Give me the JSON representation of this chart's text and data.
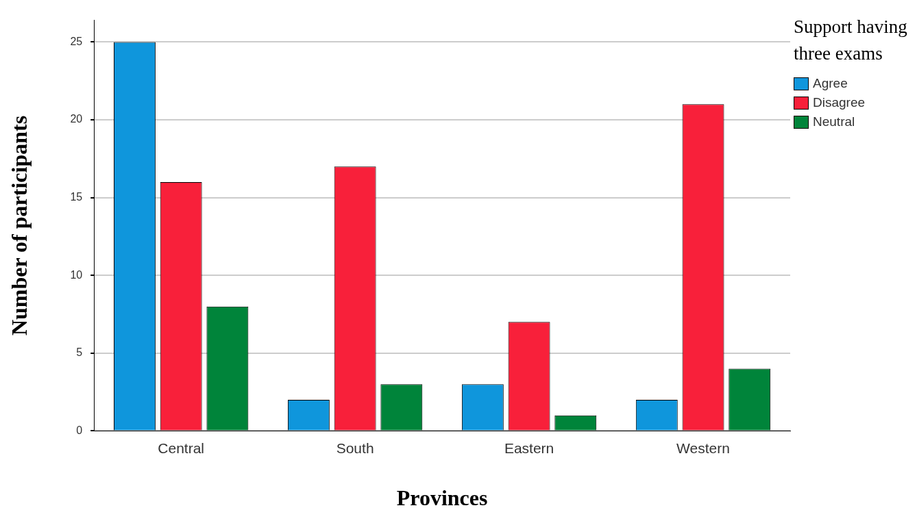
{
  "chart_data": {
    "type": "bar",
    "xlabel": "Provinces",
    "ylabel": "Number of participants",
    "legend_title": "Support having three exams",
    "categories": [
      "Central",
      "South",
      "Eastern",
      "Western"
    ],
    "series": [
      {
        "name": "Agree",
        "color": "#0f96dc",
        "values": [
          25,
          2,
          3,
          2
        ]
      },
      {
        "name": "Disagree",
        "color": "#f8203a",
        "values": [
          16,
          17,
          7,
          21
        ]
      },
      {
        "name": "Neutral",
        "color": "#00843a",
        "values": [
          8,
          3,
          1,
          4
        ]
      }
    ],
    "ylim": [
      0,
      26.4
    ],
    "yticks": [
      0,
      5,
      10,
      15,
      20,
      25
    ],
    "grid": "y",
    "legend": "top right"
  }
}
